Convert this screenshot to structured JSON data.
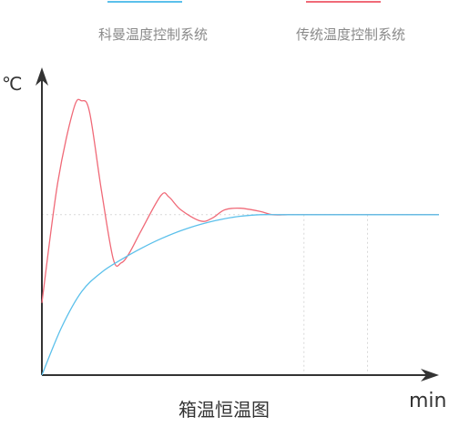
{
  "chart_data": {
    "type": "line",
    "title": "箱温恒温图",
    "xlabel": "min",
    "ylabel": "℃",
    "grid": false,
    "legend": "top",
    "setpoint": 1.0,
    "xlim": [
      0,
      100
    ],
    "ylim": [
      0,
      1.85
    ],
    "series": [
      {
        "name": "科曼温度控制系统",
        "color": "#5bc0eb",
        "x": [
          0,
          5,
          10,
          15,
          20,
          25,
          30,
          35,
          40,
          45,
          50,
          55,
          60,
          65,
          70,
          80,
          90,
          100
        ],
        "y": [
          0,
          0.3,
          0.52,
          0.64,
          0.72,
          0.79,
          0.85,
          0.9,
          0.94,
          0.97,
          0.99,
          1.0,
          1.0,
          1.0,
          1.0,
          1.0,
          1.0,
          1.0
        ]
      },
      {
        "name": "传统温度控制系统",
        "color": "#f06a78",
        "x": [
          0,
          4,
          8,
          10,
          12,
          15,
          18,
          20,
          22,
          25,
          30,
          32,
          35,
          40,
          43,
          46,
          50,
          55,
          58,
          62,
          66,
          70,
          80,
          90,
          100
        ],
        "y": [
          0.45,
          1.2,
          1.66,
          1.71,
          1.64,
          1.15,
          0.72,
          0.7,
          0.76,
          0.9,
          1.12,
          1.11,
          1.03,
          0.96,
          0.98,
          1.03,
          1.04,
          1.02,
          1.0,
          1.0,
          1.0,
          1.0,
          1.0,
          1.0,
          1.0
        ]
      }
    ]
  }
}
